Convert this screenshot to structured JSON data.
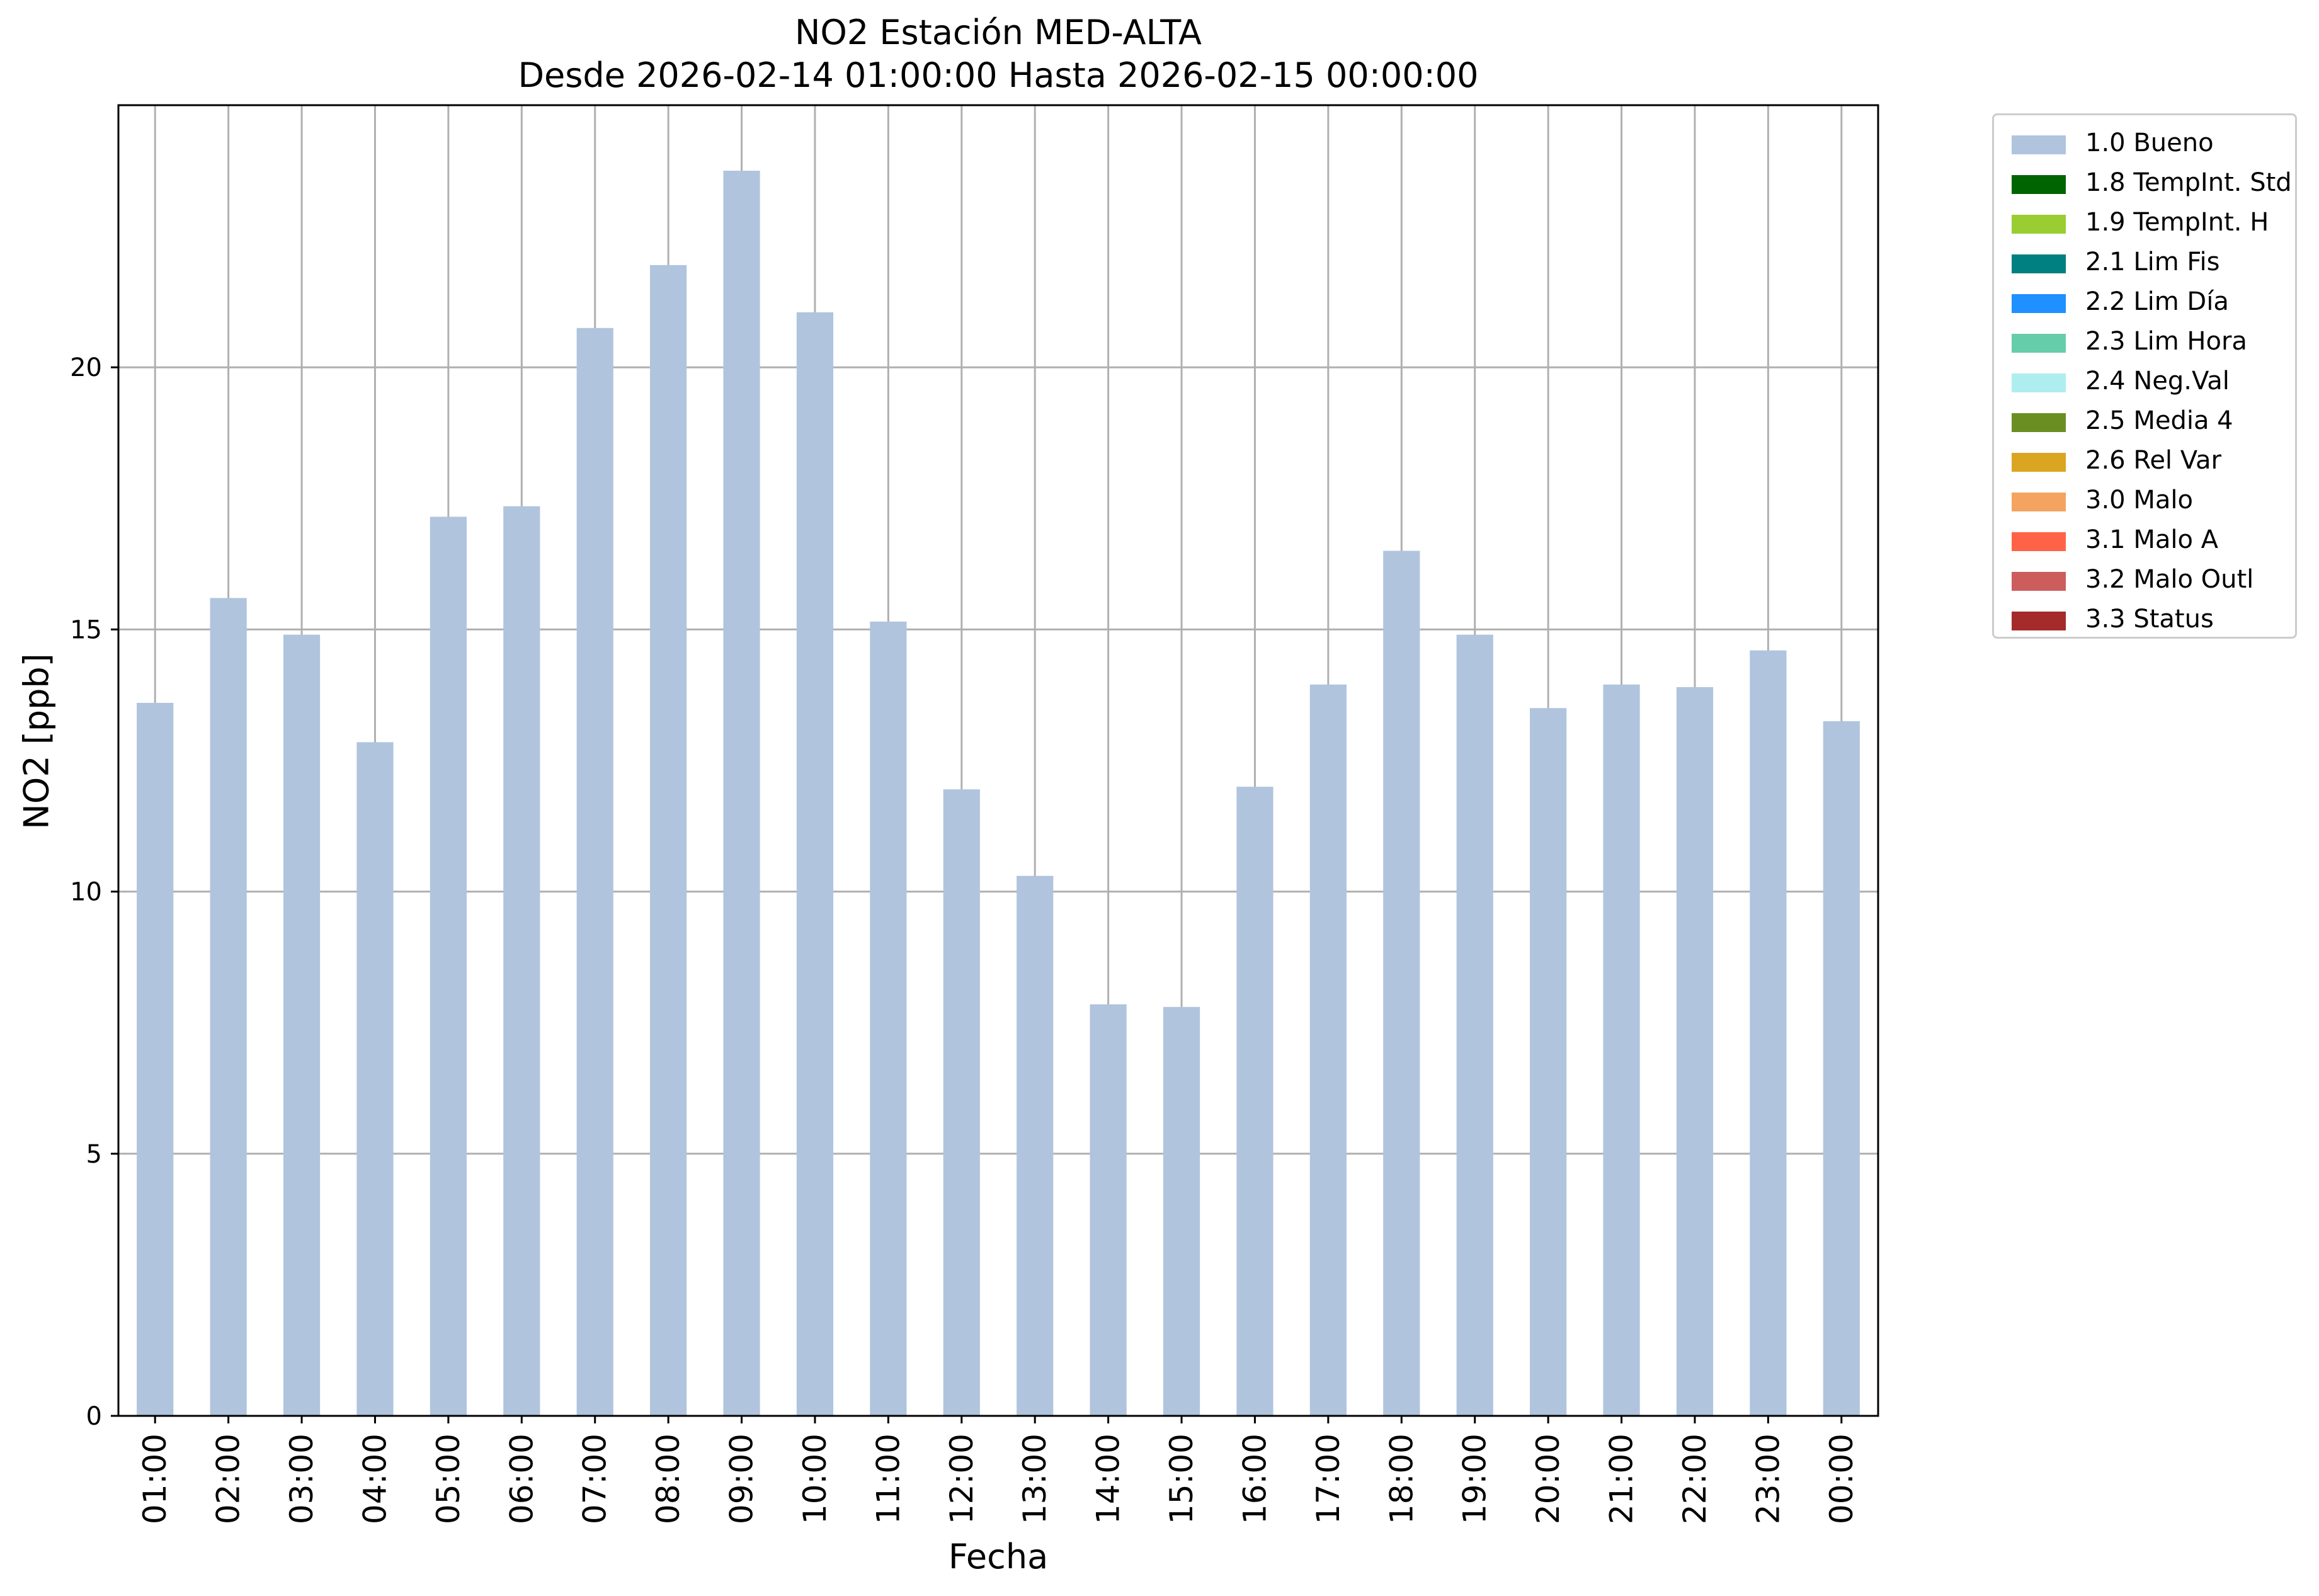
{
  "title": "NO2 Estación MED-ALTA",
  "subtitle": "Desde 2026-02-14 01:00:00 Hasta 2026-02-15 00:00:00",
  "legend": [
    {
      "label": "1.0 Bueno",
      "color": "#b0c4de"
    },
    {
      "label": "1.8 TempInt. Std",
      "color": "#006400"
    },
    {
      "label": "1.9 TempInt. H",
      "color": "#9acd32"
    },
    {
      "label": "2.1 Lim Fis",
      "color": "#008080"
    },
    {
      "label": "2.2 Lim Día",
      "color": "#1e90ff"
    },
    {
      "label": "2.3 Lim Hora",
      "color": "#66cdaa"
    },
    {
      "label": "2.4 Neg.Val",
      "color": "#afeeee"
    },
    {
      "label": "2.5 Media 4",
      "color": "#6b8e23"
    },
    {
      "label": "2.6 Rel Var",
      "color": "#daa520"
    },
    {
      "label": "3.0 Malo",
      "color": "#f4a460"
    },
    {
      "label": "3.1 Malo A",
      "color": "#ff6347"
    },
    {
      "label": "3.2 Malo Outl",
      "color": "#cd5c5c"
    },
    {
      "label": "3.3 Status",
      "color": "#a52a2a"
    }
  ],
  "chart_data": {
    "type": "bar",
    "title": "NO2 Estación MED-ALTA",
    "subtitle": "Desde 2026-02-14 01:00:00 Hasta 2026-02-15 00:00:00",
    "xlabel": "Fecha",
    "ylabel": "NO2 [ppb]",
    "ylim": [
      0,
      25
    ],
    "yticks": [
      0,
      5,
      10,
      15,
      20
    ],
    "grid": true,
    "legend_position": "outside-top-right",
    "categories": [
      "01:00",
      "02:00",
      "03:00",
      "04:00",
      "05:00",
      "06:00",
      "07:00",
      "08:00",
      "09:00",
      "10:00",
      "11:00",
      "12:00",
      "13:00",
      "14:00",
      "15:00",
      "16:00",
      "17:00",
      "18:00",
      "19:00",
      "20:00",
      "21:00",
      "22:00",
      "23:00",
      "00:00"
    ],
    "series": [
      {
        "name": "1.0 Bueno",
        "color": "#b0c4de",
        "values": [
          13.6,
          15.6,
          14.9,
          12.85,
          17.15,
          17.35,
          20.75,
          21.95,
          23.75,
          21.05,
          15.15,
          11.95,
          10.3,
          7.85,
          7.8,
          12.0,
          13.95,
          16.5,
          14.9,
          13.5,
          13.95,
          13.9,
          14.6,
          13.25
        ]
      }
    ]
  }
}
